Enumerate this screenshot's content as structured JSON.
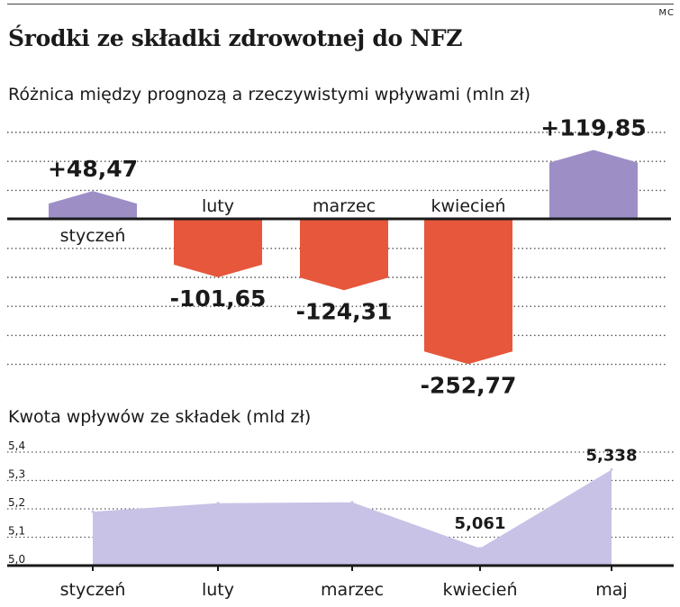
{
  "header": {
    "credit": "MC",
    "title": "Środki ze składki zdrowotnej do NFZ"
  },
  "colors": {
    "positive": "#9d8fc6",
    "negative": "#e6573c",
    "area": "#c8c2e6",
    "axis": "#1a1a1a",
    "grid": "#555555"
  },
  "chart_data": [
    {
      "type": "bar",
      "title": "Różnica między prognozą a rzeczywistymi wpływami (mln zł)",
      "categories": [
        "styczeń",
        "luty",
        "marzec",
        "kwiecień",
        "maj"
      ],
      "values": [
        48.47,
        -101.65,
        -124.31,
        -252.77,
        119.85
      ],
      "value_labels": [
        "+48,47",
        "-101,65",
        "-124,31",
        "-252,77",
        "+119,85"
      ],
      "category_label_visible": [
        true,
        true,
        true,
        true,
        false
      ],
      "grid": true,
      "ylim": [
        -260,
        120
      ]
    },
    {
      "type": "area",
      "title": "Kwota wpływów ze składek (mld zł)",
      "categories": [
        "styczeń",
        "luty",
        "marzec",
        "kwiecień",
        "maj"
      ],
      "values": [
        5.19,
        5.22,
        5.223,
        5.061,
        5.338
      ],
      "point_labels": [
        "",
        "",
        "",
        "5,061",
        "5,338"
      ],
      "yticks": [
        5.0,
        5.1,
        5.2,
        5.3,
        5.4
      ],
      "ytick_labels": [
        "5,0",
        "5,1",
        "5,2",
        "5,3",
        "5,4"
      ],
      "ylim": [
        5.0,
        5.4
      ],
      "grid": true
    }
  ]
}
